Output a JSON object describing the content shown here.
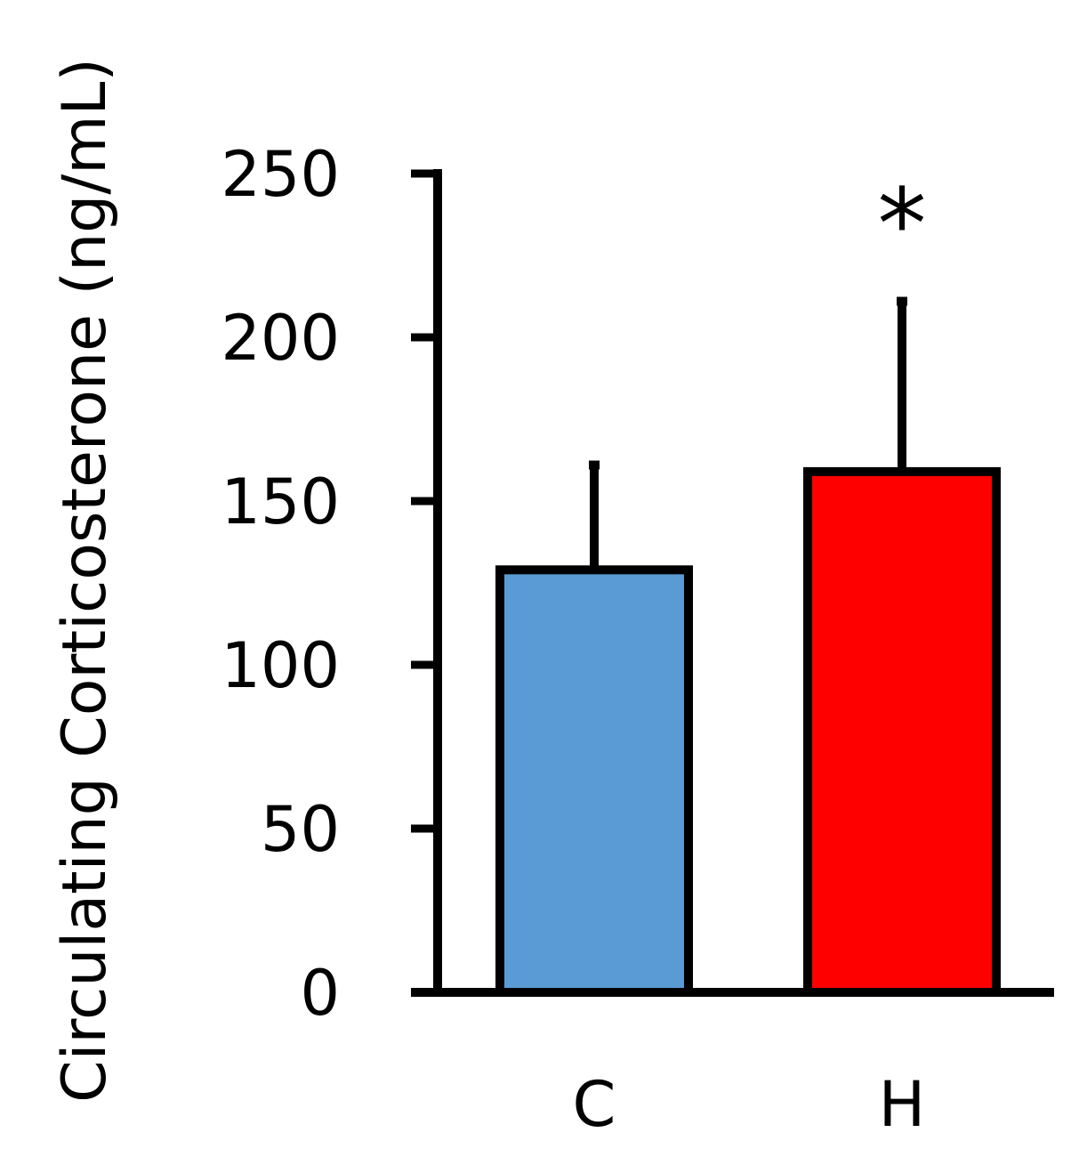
{
  "chart_data": {
    "type": "bar",
    "title": "",
    "xlabel": "",
    "ylabel": "Circulating Corticosterone (ng/mL)",
    "categories": [
      "C",
      "H"
    ],
    "values": [
      129,
      159
    ],
    "error_upper": [
      32,
      52
    ],
    "colors": [
      "#5B9BD5",
      "#FF0000"
    ],
    "edge_color": "#000000",
    "ylim": [
      0,
      250
    ],
    "yticks": [
      0,
      50,
      100,
      150,
      200,
      250
    ],
    "ytick_labels": [
      "0",
      "50",
      "100",
      "150",
      "200",
      "250"
    ],
    "annotations": [
      {
        "category": "H",
        "text": "*"
      }
    ],
    "grid": false,
    "legend": "none"
  }
}
